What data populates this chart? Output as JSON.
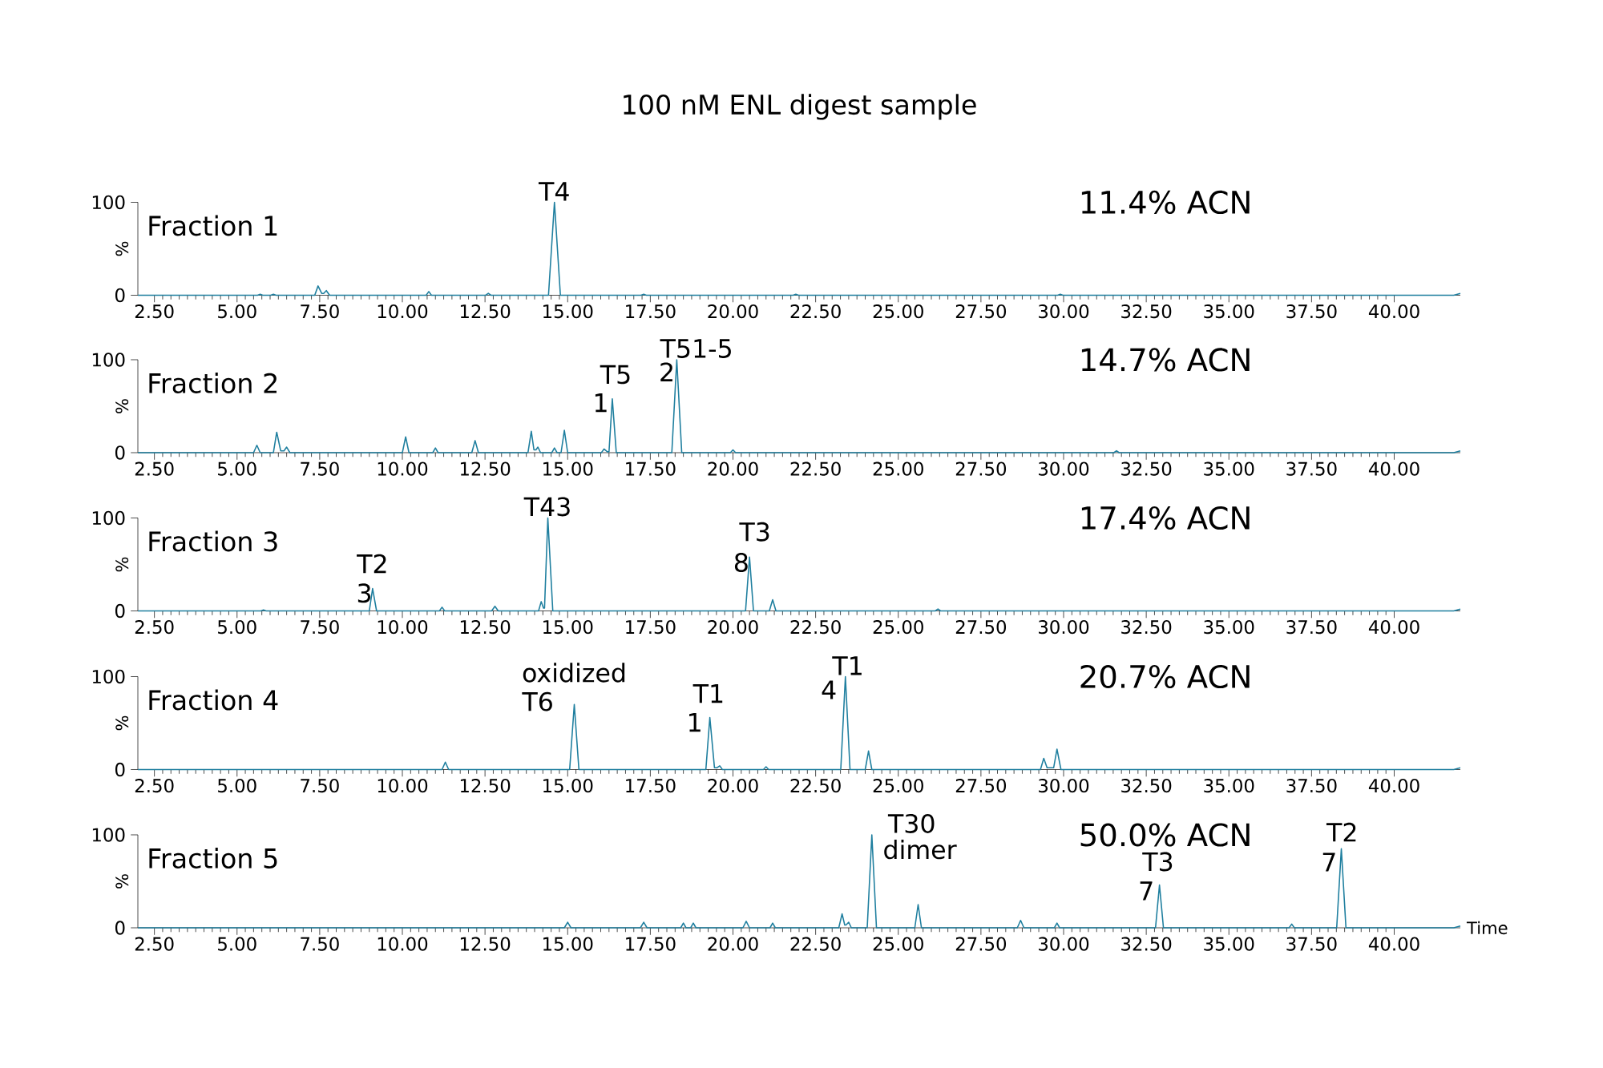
{
  "chart_data": [
    {
      "type": "line",
      "title": "100 nM ENL digest sample",
      "ylabel": "%",
      "color": "#1f7f9f",
      "x": [
        2.0,
        5.62,
        5.7,
        5.78,
        6.02,
        6.1,
        6.18,
        7.35,
        7.45,
        7.56,
        7.62,
        7.7,
        7.8,
        10.72,
        10.8,
        10.88,
        12.52,
        12.6,
        12.68,
        14.42,
        14.6,
        14.78,
        17.22,
        17.3,
        17.38,
        21.82,
        21.9,
        21.98,
        29.82,
        29.9,
        29.98,
        41.8,
        42.0
      ],
      "values": [
        0,
        0,
        1,
        0,
        0,
        1,
        0,
        0,
        10,
        2,
        2,
        5,
        0,
        0,
        4,
        0,
        0,
        2,
        0,
        0,
        100,
        0,
        0,
        1,
        0,
        0,
        1,
        0,
        0,
        1,
        0,
        0,
        2
      ],
      "xlim": [
        2,
        42
      ],
      "ylim": [
        0,
        100
      ],
      "yticks": [
        0,
        100
      ],
      "xticks": [
        {
          "value": 2.5,
          "label": "2.50"
        },
        {
          "value": 5,
          "label": "5.00"
        },
        {
          "value": 7.5,
          "label": "7.50"
        },
        {
          "value": 10,
          "label": "10.00"
        },
        {
          "value": 12.5,
          "label": "12.50"
        },
        {
          "value": 15,
          "label": "15.00"
        },
        {
          "value": 17.5,
          "label": "17.50"
        },
        {
          "value": 20,
          "label": "20.00"
        },
        {
          "value": 22.5,
          "label": "22.50"
        },
        {
          "value": 25,
          "label": "25.00"
        },
        {
          "value": 27.5,
          "label": "27.50"
        },
        {
          "value": 30,
          "label": "30.00"
        },
        {
          "value": 32.5,
          "label": "32.50"
        },
        {
          "value": 35,
          "label": "35.00"
        },
        {
          "value": 37.5,
          "label": "37.50"
        },
        {
          "value": 40,
          "label": "40.00"
        }
      ],
      "annotations": [
        "Fraction 1",
        "11.4% ACN",
        {
          "text": "T4",
          "x": 14.6,
          "y": 100
        }
      ]
    },
    {
      "type": "line",
      "ylabel": "%",
      "color": "#1f7f9f",
      "x": [
        2.0,
        5.5,
        5.6,
        5.7,
        6.1,
        6.2,
        6.32,
        6.42,
        6.5,
        6.6,
        10.0,
        10.1,
        10.2,
        10.92,
        11.0,
        11.08,
        12.1,
        12.2,
        12.3,
        13.8,
        13.9,
        13.98,
        14.04,
        14.1,
        14.18,
        14.52,
        14.6,
        14.68,
        14.8,
        14.9,
        15.0,
        16.02,
        16.1,
        16.2,
        16.25,
        16.35,
        16.47,
        18.15,
        18.3,
        18.45,
        19.92,
        20.0,
        20.08,
        31.52,
        31.6,
        31.68,
        41.8,
        42.0
      ],
      "values": [
        0,
        0,
        8,
        0,
        0,
        22,
        2,
        2,
        6,
        0,
        0,
        17,
        0,
        0,
        5,
        0,
        0,
        13,
        0,
        0,
        23,
        3,
        3,
        6,
        0,
        0,
        5,
        0,
        0,
        24,
        0,
        0,
        4,
        1,
        1,
        58,
        0,
        0,
        100,
        0,
        0,
        3,
        0,
        0,
        2,
        0,
        0,
        2
      ],
      "xlim": [
        2,
        42
      ],
      "ylim": [
        0,
        100
      ],
      "yticks": [
        0,
        100
      ],
      "xticks": [
        {
          "value": 2.5,
          "label": "2.50"
        },
        {
          "value": 5,
          "label": "5.00"
        },
        {
          "value": 7.5,
          "label": "7.50"
        },
        {
          "value": 10,
          "label": "10.00"
        },
        {
          "value": 12.5,
          "label": "12.50"
        },
        {
          "value": 15,
          "label": "15.00"
        },
        {
          "value": 17.5,
          "label": "17.50"
        },
        {
          "value": 20,
          "label": "20.00"
        },
        {
          "value": 22.5,
          "label": "22.50"
        },
        {
          "value": 25,
          "label": "25.00"
        },
        {
          "value": 27.5,
          "label": "27.50"
        },
        {
          "value": 30,
          "label": "30.00"
        },
        {
          "value": 32.5,
          "label": "32.50"
        },
        {
          "value": 35,
          "label": "35.00"
        },
        {
          "value": 37.5,
          "label": "37.50"
        },
        {
          "value": 40,
          "label": "40.00"
        }
      ],
      "annotations": [
        "Fraction 2",
        "14.7% ACN",
        "T51-5",
        "2",
        "T5",
        "1"
      ]
    },
    {
      "type": "line",
      "ylabel": "%",
      "color": "#1f7f9f",
      "x": [
        2.0,
        5.72,
        5.8,
        5.88,
        9.0,
        9.1,
        9.22,
        11.12,
        11.2,
        11.28,
        12.7,
        12.8,
        12.9,
        14.12,
        14.2,
        14.27,
        14.3,
        14.4,
        14.55,
        20.38,
        20.5,
        20.62,
        21.1,
        21.2,
        21.3,
        26.12,
        26.2,
        26.28,
        41.8,
        42.0
      ],
      "values": [
        0,
        0,
        1,
        0,
        0,
        24,
        0,
        0,
        4,
        0,
        0,
        5,
        0,
        0,
        10,
        3,
        3,
        100,
        0,
        0,
        58,
        0,
        0,
        12,
        0,
        0,
        2,
        0,
        0,
        2
      ],
      "xlim": [
        2,
        42
      ],
      "ylim": [
        0,
        100
      ],
      "yticks": [
        0,
        100
      ],
      "xticks": [
        {
          "value": 2.5,
          "label": "2.50"
        },
        {
          "value": 5,
          "label": "5.00"
        },
        {
          "value": 7.5,
          "label": "7.50"
        },
        {
          "value": 10,
          "label": "10.00"
        },
        {
          "value": 12.5,
          "label": "12.50"
        },
        {
          "value": 15,
          "label": "15.00"
        },
        {
          "value": 17.5,
          "label": "17.50"
        },
        {
          "value": 20,
          "label": "20.00"
        },
        {
          "value": 22.5,
          "label": "22.50"
        },
        {
          "value": 25,
          "label": "25.00"
        },
        {
          "value": 27.5,
          "label": "27.50"
        },
        {
          "value": 30,
          "label": "30.00"
        },
        {
          "value": 32.5,
          "label": "32.50"
        },
        {
          "value": 35,
          "label": "35.00"
        },
        {
          "value": 37.5,
          "label": "37.50"
        },
        {
          "value": 40,
          "label": "40.00"
        }
      ],
      "annotations": [
        "Fraction 3",
        "17.4% ACN",
        {
          "text": "T43",
          "x": 14.4,
          "y": 100
        },
        "T2",
        "3",
        "T3",
        "8"
      ]
    },
    {
      "type": "line",
      "ylabel": "%",
      "color": "#1f7f9f",
      "x": [
        2.0,
        11.2,
        11.3,
        11.4,
        15.06,
        15.2,
        15.34,
        19.18,
        19.3,
        19.44,
        19.52,
        19.6,
        19.68,
        20.92,
        21.0,
        21.08,
        23.26,
        23.4,
        23.54,
        24.0,
        24.1,
        24.2,
        29.3,
        29.4,
        29.5,
        29.7,
        29.8,
        29.92,
        41.8,
        42.0
      ],
      "values": [
        0,
        0,
        8,
        0,
        0,
        70,
        0,
        0,
        56,
        2,
        2,
        4,
        0,
        0,
        3,
        0,
        0,
        100,
        0,
        0,
        20,
        0,
        0,
        12,
        2,
        2,
        22,
        0,
        0,
        2
      ],
      "xlim": [
        2,
        42
      ],
      "ylim": [
        0,
        100
      ],
      "yticks": [
        0,
        100
      ],
      "xticks": [
        {
          "value": 2.5,
          "label": "2.50"
        },
        {
          "value": 5,
          "label": "5.00"
        },
        {
          "value": 7.5,
          "label": "7.50"
        },
        {
          "value": 10,
          "label": "10.00"
        },
        {
          "value": 12.5,
          "label": "12.50"
        },
        {
          "value": 15,
          "label": "15.00"
        },
        {
          "value": 17.5,
          "label": "17.50"
        },
        {
          "value": 20,
          "label": "20.00"
        },
        {
          "value": 22.5,
          "label": "22.50"
        },
        {
          "value": 25,
          "label": "25.00"
        },
        {
          "value": 27.5,
          "label": "27.50"
        },
        {
          "value": 30,
          "label": "30.00"
        },
        {
          "value": 32.5,
          "label": "32.50"
        },
        {
          "value": 35,
          "label": "35.00"
        },
        {
          "value": 37.5,
          "label": "37.50"
        },
        {
          "value": 40,
          "label": "40.00"
        }
      ],
      "annotations": [
        "Fraction 4",
        "20.7% ACN",
        "oxidized",
        "T6",
        "T1",
        "1",
        "T1",
        "4"
      ]
    },
    {
      "type": "line",
      "ylabel": "%",
      "xlabel": "Time",
      "color": "#1f7f9f",
      "x": [
        2.0,
        14.9,
        15.0,
        15.1,
        17.2,
        17.3,
        17.4,
        18.42,
        18.5,
        18.58,
        18.72,
        18.8,
        18.88,
        20.3,
        20.4,
        20.5,
        21.12,
        21.2,
        21.28,
        23.2,
        23.3,
        23.38,
        23.42,
        23.5,
        23.58,
        24.06,
        24.2,
        24.34,
        25.5,
        25.6,
        25.7,
        28.6,
        28.7,
        28.8,
        29.72,
        29.8,
        29.88,
        32.78,
        32.9,
        33.02,
        36.82,
        36.9,
        36.98,
        38.26,
        38.4,
        38.54,
        41.8,
        42.0
      ],
      "values": [
        0,
        0,
        6,
        0,
        0,
        6,
        0,
        0,
        5,
        0,
        0,
        5,
        0,
        0,
        7,
        0,
        0,
        5,
        0,
        0,
        15,
        3,
        3,
        6,
        0,
        0,
        100,
        0,
        0,
        25,
        0,
        0,
        8,
        0,
        0,
        5,
        0,
        0,
        46,
        0,
        0,
        4,
        0,
        0,
        85,
        0,
        0,
        2
      ],
      "xlim": [
        2,
        42
      ],
      "ylim": [
        0,
        100
      ],
      "yticks": [
        0,
        100
      ],
      "xticks": [
        {
          "value": 2.5,
          "label": "2.50"
        },
        {
          "value": 5,
          "label": "5.00"
        },
        {
          "value": 7.5,
          "label": "7.50"
        },
        {
          "value": 10,
          "label": "10.00"
        },
        {
          "value": 12.5,
          "label": "12.50"
        },
        {
          "value": 15,
          "label": "15.00"
        },
        {
          "value": 17.5,
          "label": "17.50"
        },
        {
          "value": 20,
          "label": "20.00"
        },
        {
          "value": 22.5,
          "label": "22.50"
        },
        {
          "value": 25,
          "label": "25.00"
        },
        {
          "value": 27.5,
          "label": "27.50"
        },
        {
          "value": 30,
          "label": "30.00"
        },
        {
          "value": 32.5,
          "label": "32.50"
        },
        {
          "value": 35,
          "label": "35.00"
        },
        {
          "value": 37.5,
          "label": "37.50"
        },
        {
          "value": 40,
          "label": "40.00"
        }
      ],
      "annotations": [
        "Fraction 5",
        "50.0% ACN",
        {
          "text": "T30",
          "x": 24.2,
          "y": 100
        },
        "dimer",
        "T3",
        "7",
        "T2",
        "7"
      ]
    }
  ]
}
